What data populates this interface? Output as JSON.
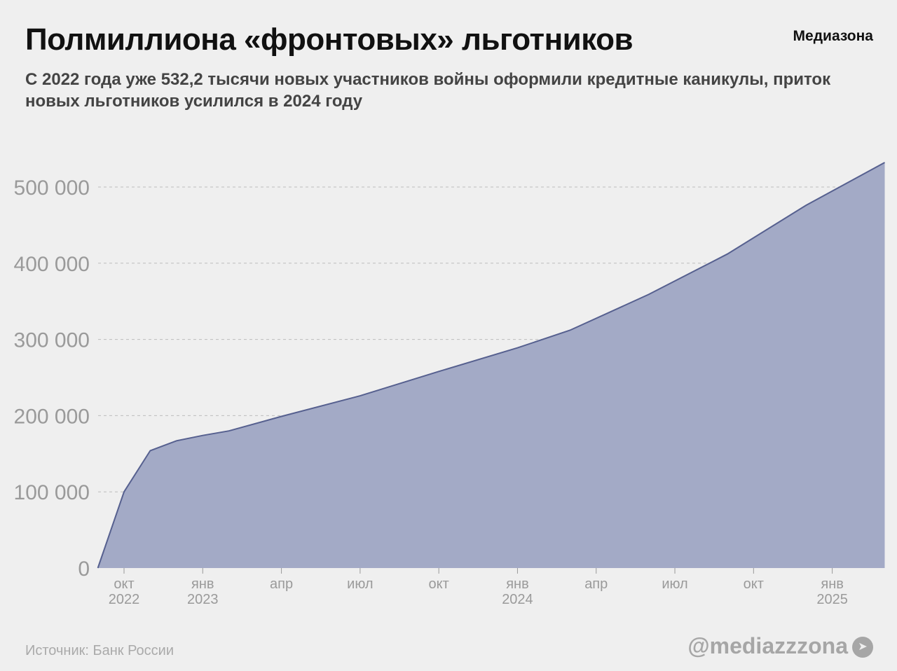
{
  "header": {
    "title": "Полмиллиона «фронтовых» льготников",
    "brand": "Медиазона",
    "subtitle": "С 2022 года уже 532,2 тысячи новых участников войны оформили кредитные каникулы, приток новых льготников усилился в 2024 году"
  },
  "footer": {
    "source": "Источник: Банк России",
    "handle": "@mediazzzona",
    "icon": "telegram-icon"
  },
  "chart_data": {
    "type": "area",
    "title": "",
    "xlabel": "",
    "ylabel": "",
    "ylim": [
      0,
      540000
    ],
    "grid": true,
    "colors": {
      "fill": "#a3aac6",
      "line": "#56608f",
      "grid": "#bdbdbd",
      "tick_text": "#9a9a9a"
    },
    "x": [
      "2022-09",
      "2022-10",
      "2022-11",
      "2022-12",
      "2023-01",
      "2023-02",
      "2023-04",
      "2023-07",
      "2023-10",
      "2024-01",
      "2024-03",
      "2024-06",
      "2024-09",
      "2024-12",
      "2025-03"
    ],
    "values": [
      0,
      100000,
      154000,
      167000,
      174000,
      180000,
      199000,
      226000,
      258000,
      289000,
      312000,
      359000,
      412000,
      476000,
      532200
    ],
    "yticks": [
      {
        "value": 0,
        "label": "0"
      },
      {
        "value": 100000,
        "label": "100 000"
      },
      {
        "value": 200000,
        "label": "200 000"
      },
      {
        "value": 300000,
        "label": "300 000"
      },
      {
        "value": 400000,
        "label": "400 000"
      },
      {
        "value": 500000,
        "label": "500 000"
      }
    ],
    "xticks": [
      {
        "month": "2022-10",
        "label": "окт",
        "year": "2022"
      },
      {
        "month": "2023-01",
        "label": "янв",
        "year": "2023"
      },
      {
        "month": "2023-04",
        "label": "апр",
        "year": ""
      },
      {
        "month": "2023-07",
        "label": "июл",
        "year": ""
      },
      {
        "month": "2023-10",
        "label": "окт",
        "year": ""
      },
      {
        "month": "2024-01",
        "label": "янв",
        "year": "2024"
      },
      {
        "month": "2024-04",
        "label": "апр",
        "year": ""
      },
      {
        "month": "2024-07",
        "label": "июл",
        "year": ""
      },
      {
        "month": "2024-10",
        "label": "окт",
        "year": ""
      },
      {
        "month": "2025-01",
        "label": "янв",
        "year": "2025"
      }
    ]
  }
}
